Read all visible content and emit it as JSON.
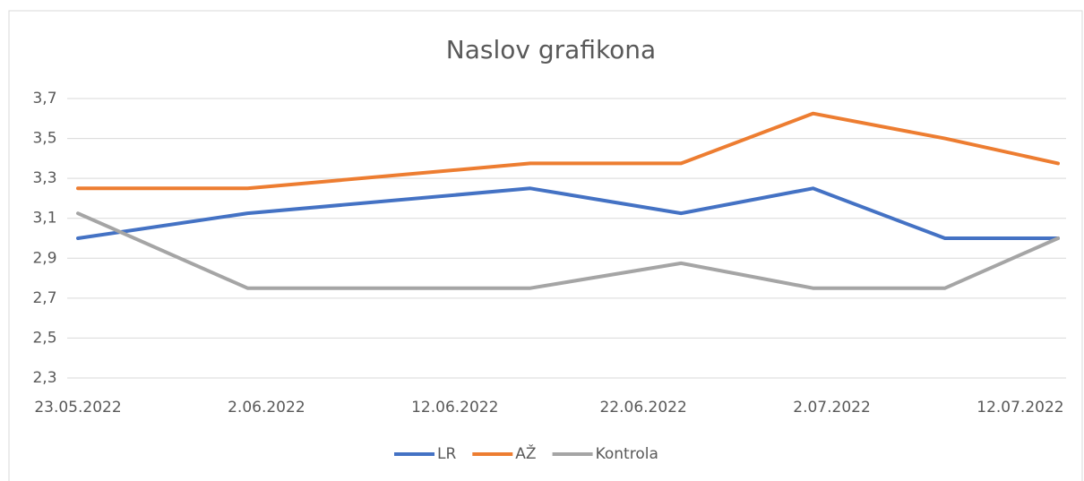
{
  "chart_data": {
    "type": "line",
    "title": "Naslov grafikona",
    "x": [
      "23.05.2022",
      "1.06.2022",
      "16.06.2022",
      "24.06.2022",
      "1.07.2022",
      "8.07.2022",
      "14.07.2022"
    ],
    "xlim": [
      "23.05.2022",
      "14.07.2022"
    ],
    "xticks": [
      "23.05.2022",
      "2.06.2022",
      "12.06.2022",
      "22.06.2022",
      "2.07.2022",
      "12.07.2022"
    ],
    "ylim": [
      2.3,
      3.7
    ],
    "yticks": [
      {
        "value": 2.3,
        "label": "2,3"
      },
      {
        "value": 2.5,
        "label": "2,5"
      },
      {
        "value": 2.7,
        "label": "2,7"
      },
      {
        "value": 2.9,
        "label": "2,9"
      },
      {
        "value": 3.1,
        "label": "3,1"
      },
      {
        "value": 3.3,
        "label": "3,3"
      },
      {
        "value": 3.5,
        "label": "3,5"
      },
      {
        "value": 3.7,
        "label": "3,7"
      }
    ],
    "grid": true,
    "legend": "bottom",
    "series": [
      {
        "name": "LR",
        "color": "#4472c4",
        "values": [
          3.0,
          3.125,
          3.25,
          3.125,
          3.25,
          3.0,
          3.0
        ]
      },
      {
        "name": "AŽ",
        "color": "#ed7d31",
        "values": [
          3.25,
          3.25,
          3.375,
          3.375,
          3.625,
          3.5,
          3.375
        ]
      },
      {
        "name": "Kontrola",
        "color": "#a5a5a5",
        "values": [
          3.125,
          2.75,
          2.75,
          2.875,
          2.75,
          2.75,
          3.0
        ]
      }
    ]
  }
}
